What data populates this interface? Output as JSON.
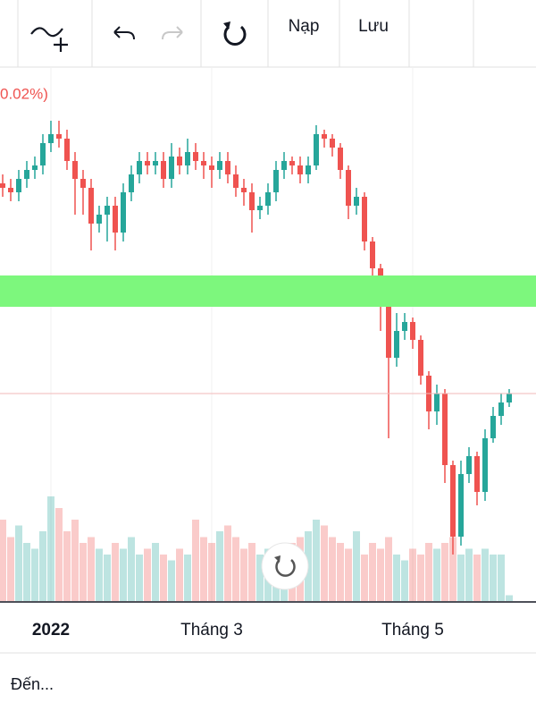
{
  "toolbar": {
    "load": "Nạp",
    "save": "Lưu"
  },
  "chart_data": {
    "type": "candlestick",
    "change_label": "0.02%)",
    "categories": [
      null,
      null,
      null,
      null,
      null,
      null,
      "2022",
      null,
      null,
      null,
      null,
      null,
      null,
      null,
      null,
      null,
      null,
      null,
      null,
      null,
      null,
      null,
      null,
      null,
      null,
      null,
      "Tháng 3",
      null,
      null,
      null,
      null,
      null,
      null,
      null,
      null,
      null,
      null,
      null,
      null,
      null,
      null,
      null,
      null,
      null,
      null,
      null,
      null,
      null,
      null,
      null,
      null,
      "Tháng 5",
      null,
      null,
      null,
      null,
      null,
      null,
      null,
      null,
      null,
      null,
      null,
      null
    ],
    "ohlc": [
      [
        475,
        485,
        460,
        470
      ],
      [
        470,
        480,
        455,
        465
      ],
      [
        465,
        490,
        455,
        480
      ],
      [
        480,
        500,
        470,
        490
      ],
      [
        490,
        505,
        480,
        495
      ],
      [
        495,
        530,
        485,
        520
      ],
      [
        520,
        545,
        510,
        530
      ],
      [
        530,
        545,
        515,
        525
      ],
      [
        525,
        535,
        490,
        500
      ],
      [
        500,
        510,
        440,
        480
      ],
      [
        480,
        490,
        440,
        470
      ],
      [
        470,
        480,
        400,
        430
      ],
      [
        430,
        450,
        420,
        440
      ],
      [
        440,
        460,
        410,
        450
      ],
      [
        450,
        460,
        400,
        420
      ],
      [
        420,
        475,
        410,
        465
      ],
      [
        465,
        495,
        455,
        485
      ],
      [
        485,
        510,
        475,
        500
      ],
      [
        500,
        510,
        485,
        495
      ],
      [
        495,
        510,
        485,
        500
      ],
      [
        500,
        510,
        470,
        480
      ],
      [
        480,
        520,
        470,
        505
      ],
      [
        505,
        515,
        485,
        495
      ],
      [
        495,
        525,
        485,
        510
      ],
      [
        510,
        520,
        490,
        500
      ],
      [
        500,
        510,
        480,
        495
      ],
      [
        495,
        505,
        470,
        490
      ],
      [
        490,
        510,
        480,
        500
      ],
      [
        500,
        510,
        475,
        485
      ],
      [
        485,
        495,
        460,
        470
      ],
      [
        470,
        480,
        450,
        465
      ],
      [
        465,
        475,
        420,
        445
      ],
      [
        445,
        460,
        435,
        450
      ],
      [
        450,
        475,
        440,
        465
      ],
      [
        465,
        500,
        455,
        490
      ],
      [
        490,
        510,
        480,
        500
      ],
      [
        500,
        505,
        485,
        495
      ],
      [
        495,
        505,
        475,
        485
      ],
      [
        485,
        505,
        475,
        495
      ],
      [
        495,
        540,
        490,
        530
      ],
      [
        530,
        535,
        515,
        525
      ],
      [
        525,
        530,
        505,
        515
      ],
      [
        515,
        520,
        480,
        490
      ],
      [
        490,
        495,
        435,
        450
      ],
      [
        450,
        470,
        440,
        460
      ],
      [
        460,
        465,
        400,
        410
      ],
      [
        410,
        415,
        370,
        380
      ],
      [
        380,
        385,
        310,
        340
      ],
      [
        340,
        350,
        190,
        280
      ],
      [
        280,
        330,
        270,
        310
      ],
      [
        310,
        330,
        300,
        320
      ],
      [
        320,
        325,
        290,
        300
      ],
      [
        300,
        305,
        250,
        260
      ],
      [
        260,
        265,
        200,
        220
      ],
      [
        220,
        250,
        205,
        240
      ],
      [
        240,
        245,
        140,
        160
      ],
      [
        160,
        165,
        60,
        80
      ],
      [
        80,
        165,
        70,
        150
      ],
      [
        150,
        180,
        140,
        170
      ],
      [
        170,
        175,
        115,
        130
      ],
      [
        130,
        200,
        120,
        190
      ],
      [
        190,
        225,
        185,
        215
      ],
      [
        215,
        240,
        205,
        230
      ],
      [
        230,
        245,
        225,
        240
      ]
    ],
    "volume": [
      70,
      55,
      65,
      50,
      45,
      60,
      90,
      80,
      60,
      70,
      50,
      55,
      45,
      40,
      50,
      45,
      55,
      40,
      45,
      50,
      40,
      35,
      45,
      40,
      70,
      55,
      50,
      60,
      65,
      55,
      45,
      50,
      40,
      45,
      35,
      40,
      50,
      55,
      60,
      70,
      65,
      55,
      50,
      45,
      60,
      40,
      50,
      45,
      55,
      40,
      35,
      45,
      40,
      50,
      45,
      50,
      55,
      40,
      45,
      40,
      45,
      40,
      40,
      5
    ],
    "ylim": [
      0,
      600
    ],
    "volume_ylim": [
      0,
      100
    ],
    "up_color": "#26a69a",
    "down_color": "#ef5350"
  },
  "footer": {
    "goto": "Đến..."
  }
}
